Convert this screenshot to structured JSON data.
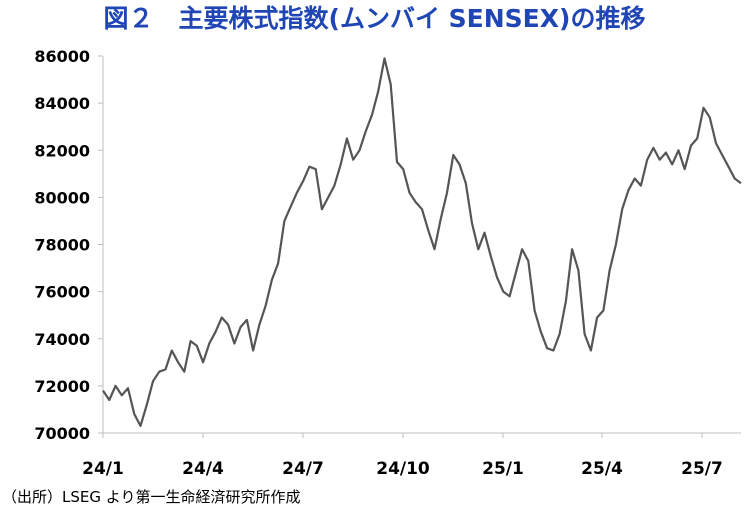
{
  "title": "図２　主要株式指数(ムンバイ SENSEX)の推移",
  "source": "（出所）LSEG より第一生命経済研究所作成",
  "colors": {
    "title": "#1f46b4",
    "line": "#555555",
    "axis": "#bfbfbf"
  },
  "chart_data": {
    "type": "line",
    "title": "図２　主要株式指数(ムンバイ SENSEX)の推移",
    "xlabel": "",
    "ylabel": "",
    "ylim": [
      70000,
      86000
    ],
    "yticks": [
      "86000",
      "84000",
      "82000",
      "80000",
      "78000",
      "76000",
      "74000",
      "72000",
      "70000"
    ],
    "xticks": [
      "24/1",
      "24/4",
      "24/7",
      "24/10",
      "25/1",
      "25/4",
      "25/7"
    ],
    "grid": false,
    "legend": "none",
    "series": [
      {
        "values": [
          [
            0,
            71800
          ],
          [
            1,
            71400
          ],
          [
            2,
            72000
          ],
          [
            3,
            71600
          ],
          [
            4,
            71900
          ],
          [
            5,
            70800
          ],
          [
            6,
            70300
          ],
          [
            7,
            71200
          ],
          [
            8,
            72200
          ],
          [
            9,
            72600
          ],
          [
            10,
            72700
          ],
          [
            11,
            73500
          ],
          [
            12,
            73000
          ],
          [
            13,
            72600
          ],
          [
            14,
            73900
          ],
          [
            15,
            73700
          ],
          [
            16,
            73000
          ],
          [
            17,
            73800
          ],
          [
            18,
            74300
          ],
          [
            19,
            74900
          ],
          [
            20,
            74600
          ],
          [
            21,
            73800
          ],
          [
            22,
            74500
          ],
          [
            23,
            74800
          ],
          [
            24,
            73500
          ],
          [
            25,
            74600
          ],
          [
            26,
            75400
          ],
          [
            27,
            76500
          ],
          [
            28,
            77200
          ],
          [
            29,
            79000
          ],
          [
            30,
            79600
          ],
          [
            31,
            80200
          ],
          [
            32,
            80700
          ],
          [
            33,
            81300
          ],
          [
            34,
            81200
          ],
          [
            35,
            79500
          ],
          [
            36,
            80000
          ],
          [
            37,
            80500
          ],
          [
            38,
            81400
          ],
          [
            39,
            82500
          ],
          [
            40,
            81600
          ],
          [
            41,
            82000
          ],
          [
            42,
            82800
          ],
          [
            43,
            83500
          ],
          [
            44,
            84500
          ],
          [
            45,
            85900
          ],
          [
            46,
            84800
          ],
          [
            47,
            81500
          ],
          [
            48,
            81200
          ],
          [
            49,
            80200
          ],
          [
            50,
            79800
          ],
          [
            51,
            79500
          ],
          [
            52,
            78600
          ],
          [
            53,
            77800
          ],
          [
            54,
            79100
          ],
          [
            55,
            80200
          ],
          [
            56,
            81800
          ],
          [
            57,
            81400
          ],
          [
            58,
            80600
          ],
          [
            59,
            78900
          ],
          [
            60,
            77800
          ],
          [
            61,
            78500
          ],
          [
            62,
            77500
          ],
          [
            63,
            76600
          ],
          [
            64,
            76000
          ],
          [
            65,
            75800
          ],
          [
            66,
            76800
          ],
          [
            67,
            77800
          ],
          [
            68,
            77300
          ],
          [
            69,
            75200
          ],
          [
            70,
            74300
          ],
          [
            71,
            73600
          ],
          [
            72,
            73500
          ],
          [
            73,
            74200
          ],
          [
            74,
            75600
          ],
          [
            75,
            77800
          ],
          [
            76,
            76900
          ],
          [
            77,
            74200
          ],
          [
            78,
            73500
          ],
          [
            79,
            74900
          ],
          [
            80,
            75200
          ],
          [
            81,
            76900
          ],
          [
            82,
            78000
          ],
          [
            83,
            79500
          ],
          [
            84,
            80300
          ],
          [
            85,
            80800
          ],
          [
            86,
            80500
          ],
          [
            87,
            81600
          ],
          [
            88,
            82100
          ],
          [
            89,
            81600
          ],
          [
            90,
            81900
          ],
          [
            91,
            81400
          ],
          [
            92,
            82000
          ],
          [
            93,
            81200
          ],
          [
            94,
            82200
          ],
          [
            95,
            82500
          ],
          [
            96,
            83800
          ],
          [
            97,
            83400
          ],
          [
            98,
            82300
          ],
          [
            99,
            81800
          ],
          [
            100,
            81300
          ],
          [
            101,
            80800
          ],
          [
            102,
            80600
          ]
        ]
      }
    ]
  }
}
